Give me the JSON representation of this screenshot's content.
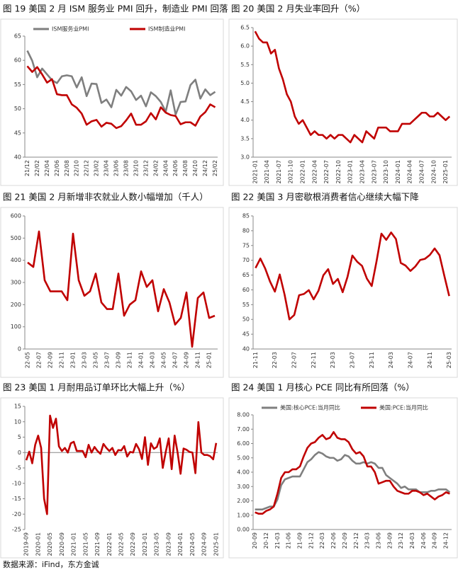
{
  "chart_data": [
    {
      "type": "line",
      "title": "图 19 美国 2 月 ISM 服务业 PMI 回升，制造业 PMI 回落",
      "categories": [
        "21/12",
        null,
        "22/02",
        null,
        "22/04",
        null,
        "22/06",
        null,
        "22/08",
        null,
        "22/10",
        null,
        "22/12",
        null,
        "23/02",
        null,
        "23/04",
        null,
        "23/06",
        null,
        "23/08",
        null,
        "23/10",
        null,
        "23/12",
        null,
        "24/02",
        null,
        "24/04",
        null,
        "24/06",
        null,
        "24/08",
        null,
        "24/10",
        null,
        "24/12",
        null,
        "25/02"
      ],
      "series": [
        {
          "name": "ISM服务业PMI",
          "color": "#7f7f7f",
          "values": [
            62,
            59.9,
            56.5,
            58.3,
            57.1,
            55.9,
            55.3,
            56.7,
            56.9,
            56.7,
            54.4,
            56.5,
            52.6,
            55.2,
            55.1,
            51.2,
            51.9,
            50.3,
            53.9,
            52.7,
            54.5,
            53.6,
            51.8,
            52.7,
            50.5,
            53.4,
            52.6,
            51.4,
            49.4,
            53.8,
            48.8,
            51.4,
            51.5,
            54.9,
            56,
            52.1,
            54,
            52.8,
            53.5
          ]
        },
        {
          "name": "ISM制造业PMI",
          "color": "#c00000",
          "values": [
            58.8,
            57.6,
            58.6,
            57.1,
            55.4,
            56.1,
            53,
            52.8,
            52.8,
            50.9,
            50.2,
            49,
            46.7,
            47.4,
            47.7,
            46.3,
            47.1,
            46.9,
            46,
            46.4,
            47.6,
            49,
            46.7,
            46.7,
            47.4,
            49.1,
            47.8,
            50.3,
            49.2,
            48.7,
            48.5,
            46.8,
            47.2,
            47.2,
            46.5,
            48.4,
            49.3,
            50.9,
            50.3
          ]
        }
      ],
      "ylim": [
        40,
        65
      ],
      "yticks": [
        40,
        45,
        50,
        55,
        60,
        65
      ],
      "legend": "top"
    },
    {
      "type": "line",
      "title": "图 20 美国 2 月失业率回升（%）",
      "categories": [
        "2021-01",
        null,
        null,
        "2021-04",
        null,
        null,
        "2021-07",
        null,
        null,
        "2021-10",
        null,
        null,
        "2022-01",
        null,
        null,
        "2022-04",
        null,
        null,
        "2022-07",
        null,
        null,
        "2022-10",
        null,
        null,
        "2023-01",
        null,
        null,
        "2023-04",
        null,
        null,
        "2023-07",
        null,
        null,
        "2023-10",
        null,
        null,
        "2024-01",
        null,
        null,
        "2024-04",
        null,
        null,
        "2024-07",
        null,
        null,
        "2024-10",
        null,
        null,
        "2025-01",
        null
      ],
      "series": [
        {
          "name": "失业率",
          "color": "#c00000",
          "values": [
            6.4,
            6.2,
            6.1,
            6.1,
            5.8,
            5.9,
            5.4,
            5.1,
            4.7,
            4.5,
            4.1,
            3.9,
            4,
            3.8,
            3.6,
            3.7,
            3.6,
            3.6,
            3.5,
            3.6,
            3.5,
            3.6,
            3.6,
            3.5,
            3.4,
            3.6,
            3.5,
            3.4,
            3.7,
            3.6,
            3.5,
            3.8,
            3.8,
            3.8,
            3.7,
            3.7,
            3.7,
            3.9,
            3.9,
            3.9,
            4,
            4.1,
            4.2,
            4.2,
            4.1,
            4.1,
            4.2,
            4.1,
            4,
            4.1
          ]
        }
      ],
      "ylim": [
        3,
        6.5
      ],
      "yticks": [
        {
          "value": 3,
          "label": "3.0"
        },
        3.5,
        {
          "value": 4,
          "label": "4.0"
        },
        4.5,
        {
          "value": 5,
          "label": "5.0"
        },
        5.5,
        {
          "value": 6,
          "label": "6.0"
        },
        6.5
      ]
    },
    {
      "type": "line",
      "title": "图 21 美国 2 月新增非农就业人数小幅增加（千人）",
      "categories": [
        "22-05",
        null,
        "22-07",
        null,
        "22-09",
        null,
        "22-11",
        null,
        "23-01",
        null,
        "23-03",
        null,
        "23-05",
        null,
        "23-07",
        null,
        "23-09",
        null,
        "23-11",
        null,
        "24-01",
        null,
        "24-03",
        null,
        "24-05",
        null,
        "24-07",
        null,
        "24-09",
        null,
        "24-11",
        null,
        "25-01",
        null
      ],
      "series": [
        {
          "name": "新增非农就业人数",
          "color": "#c00000",
          "values": [
            390,
            370,
            530,
            310,
            260,
            260,
            260,
            220,
            520,
            310,
            240,
            260,
            340,
            210,
            180,
            180,
            340,
            150,
            200,
            220,
            350,
            280,
            310,
            170,
            270,
            210,
            110,
            140,
            255,
            10,
            230,
            255,
            140,
            150
          ]
        }
      ],
      "ylim": [
        0,
        600
      ],
      "yticks": [
        0,
        100,
        200,
        300,
        400,
        500,
        600
      ]
    },
    {
      "type": "line",
      "title": "图 22 美国 3 月密歇根消费者信心继续大幅下降",
      "categories": [
        "21-11",
        null,
        null,
        null,
        "22-03",
        null,
        null,
        null,
        "22-07",
        null,
        null,
        null,
        "22-11",
        null,
        null,
        null,
        "23-03",
        null,
        null,
        null,
        "23-07",
        null,
        null,
        null,
        "23-11",
        null,
        null,
        null,
        "24-03",
        null,
        null,
        null,
        "24-07",
        null,
        null,
        null,
        "24-11",
        null,
        null,
        null,
        "25-03"
      ],
      "series": [
        {
          "name": "密歇根消费者信心",
          "color": "#c00000",
          "values": [
            67.4,
            70.6,
            67.2,
            62.8,
            59.4,
            65.2,
            58.4,
            50,
            51.5,
            58.2,
            58.6,
            59.9,
            56.8,
            59.7,
            64.9,
            67,
            62,
            63.7,
            59.2,
            64.4,
            71.6,
            69.5,
            68.1,
            63.8,
            61.3,
            69.7,
            79,
            76.9,
            79.4,
            77.2,
            69.1,
            68.2,
            66.4,
            67.9,
            70.1,
            70.5,
            71.8,
            74,
            71.7,
            64.7,
            57.9
          ]
        }
      ],
      "ylim": [
        40,
        85
      ],
      "yticks": [
        40,
        45,
        50,
        55,
        60,
        65,
        70,
        75,
        80,
        85
      ]
    },
    {
      "type": "line",
      "title": "图 23 美国 1 月耐用品订单环比大幅上升（%）",
      "categories": [
        "2019-09",
        null,
        null,
        null,
        "2020-01",
        null,
        null,
        null,
        "2020-05",
        null,
        null,
        null,
        "2020-09",
        null,
        null,
        null,
        "2021-01",
        null,
        null,
        null,
        "2021-05",
        null,
        null,
        null,
        "2021-09",
        null,
        null,
        null,
        "2022-01",
        null,
        null,
        null,
        "2022-05",
        null,
        null,
        null,
        "2022-09",
        null,
        null,
        null,
        "2023-01",
        null,
        null,
        null,
        "2023-05",
        null,
        null,
        null,
        "2023-09",
        null,
        null,
        null,
        "2024-01",
        null,
        null,
        null,
        "2024-05",
        null,
        null,
        null,
        "2024-09",
        null,
        null,
        null,
        "2025-01"
      ],
      "series": [
        {
          "name": "耐用品订单环比",
          "color": "#c00000",
          "values": [
            -2.5,
            0.3,
            -3.5,
            2.5,
            5.5,
            1.5,
            -15,
            -20,
            12,
            8,
            11,
            2,
            0.5,
            1.5,
            0,
            3,
            3.5,
            0.5,
            0.5,
            0.5,
            -1.5,
            2.5,
            0,
            1.8,
            0.5,
            -0.4,
            2.8,
            1.5,
            0.5,
            1.5,
            -0.8,
            0.8,
            0.7,
            2.1,
            -1.3,
            0.2,
            0,
            2.8,
            1.1,
            -2.1,
            5,
            -4,
            3,
            1.2,
            1.8,
            4.6,
            -5,
            0.2,
            4.6,
            -5.4,
            5.5,
            0,
            -6.9,
            1.3,
            0.9,
            0.2,
            0,
            -6.7,
            9.9,
            0,
            -0.8,
            -0.8,
            -1.2,
            -2.2,
            3.1
          ]
        }
      ],
      "ylim": [
        -25,
        15
      ],
      "yticks": [
        -25,
        -20,
        -15,
        -10,
        -5,
        0,
        5,
        10,
        15
      ]
    },
    {
      "type": "line",
      "title": "图 24 美国 1 月核心 PCE 同比有所回落（%）",
      "categories": [
        "20-09",
        null,
        null,
        "20-12",
        null,
        null,
        "21-03",
        null,
        null,
        "21-06",
        null,
        null,
        "21-09",
        null,
        null,
        "21-12",
        null,
        null,
        "22-03",
        null,
        null,
        "22-06",
        null,
        null,
        "22-09",
        null,
        null,
        "22-12",
        null,
        null,
        "23-03",
        null,
        null,
        "23-06",
        null,
        null,
        "23-09",
        null,
        null,
        "23-12",
        null,
        null,
        "24-03",
        null,
        null,
        "24-06",
        null,
        null,
        "24-09",
        null,
        null,
        "24-12",
        null
      ],
      "series": [
        {
          "name": "美国:核心PCE:当月同比",
          "color": "#7f7f7f",
          "values": [
            1.4,
            1.4,
            1.4,
            1.5,
            1.6,
            1.6,
            2.1,
            3.1,
            3.5,
            3.6,
            3.7,
            3.7,
            3.7,
            4.2,
            4.7,
            4.9,
            5.2,
            5.4,
            5.3,
            5.1,
            5,
            5,
            4.8,
            4.9,
            5.2,
            5.1,
            4.8,
            4.6,
            4.6,
            4.7,
            4.6,
            4.7,
            4.6,
            4.3,
            4.3,
            3.8,
            3.6,
            3.4,
            3.2,
            2.9,
            3,
            2.8,
            2.8,
            2.8,
            2.6,
            2.6,
            2.6,
            2.7,
            2.7,
            2.8,
            2.8,
            2.8,
            2.6
          ]
        },
        {
          "name": "美国:PCE:当月同比",
          "color": "#c00000",
          "values": [
            1.2,
            1.1,
            1.1,
            1.3,
            1.4,
            1.6,
            2.5,
            3.6,
            4,
            4,
            4.2,
            4.2,
            4.4,
            5.1,
            5.7,
            6,
            6.1,
            6.4,
            6.6,
            6.3,
            6.4,
            6.8,
            6.4,
            6.3,
            6.3,
            6.1,
            5.6,
            5.3,
            5.4,
            5.1,
            4.4,
            4.4,
            4,
            3.2,
            3.3,
            3.4,
            3.4,
            3,
            2.7,
            2.6,
            2.5,
            2.5,
            2.7,
            2.7,
            2.6,
            2.4,
            2.5,
            2.3,
            2.1,
            2.3,
            2.4,
            2.6,
            2.5
          ]
        }
      ],
      "ylim": [
        0,
        8
      ],
      "yticks": [
        {
          "value": 0,
          "label": "0.00"
        },
        {
          "value": 1,
          "label": "1.00"
        },
        {
          "value": 2,
          "label": "2.00"
        },
        {
          "value": 3,
          "label": "3.00"
        },
        {
          "value": 4,
          "label": "4.00"
        },
        {
          "value": 5,
          "label": "5.00"
        },
        {
          "value": 6,
          "label": "6.00"
        },
        {
          "value": 7,
          "label": "7.00"
        },
        {
          "value": 8,
          "label": "8.00"
        }
      ],
      "legend": "top"
    }
  ],
  "source": "数据来源：iFind，东方金诚"
}
